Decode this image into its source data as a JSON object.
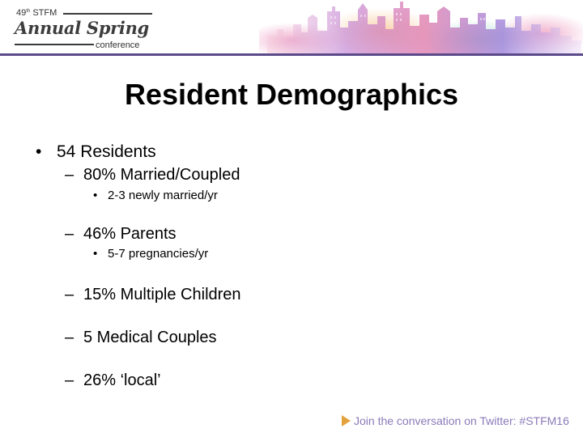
{
  "header": {
    "edition": "49",
    "edition_suffix": "th",
    "org": "STFM",
    "event_name": "Annual Spring",
    "event_sub": "conference",
    "accent_color": "#5b4a8a"
  },
  "slide": {
    "title": "Resident Demographics",
    "bullets": [
      {
        "level": 1,
        "marker": "•",
        "text": "54 Residents"
      },
      {
        "level": 2,
        "marker": "–",
        "text": "80% Married/Coupled"
      },
      {
        "level": 3,
        "marker": "•",
        "text": "2-3 newly married/yr"
      },
      {
        "level": 2,
        "marker": "–",
        "text": "46% Parents"
      },
      {
        "level": 3,
        "marker": "•",
        "text": "5-7 pregnancies/yr"
      },
      {
        "level": 2,
        "marker": "–",
        "text": "15% Multiple Children"
      },
      {
        "level": 2,
        "marker": "–",
        "text": "5 Medical Couples"
      },
      {
        "level": 2,
        "marker": "–",
        "text": "26% ‘local’"
      }
    ]
  },
  "footer": {
    "text": "Join the conversation on Twitter: #STFM16",
    "icon": "play-arrow-icon",
    "text_color": "#8b7ab8",
    "icon_color": "#e3a23b"
  }
}
